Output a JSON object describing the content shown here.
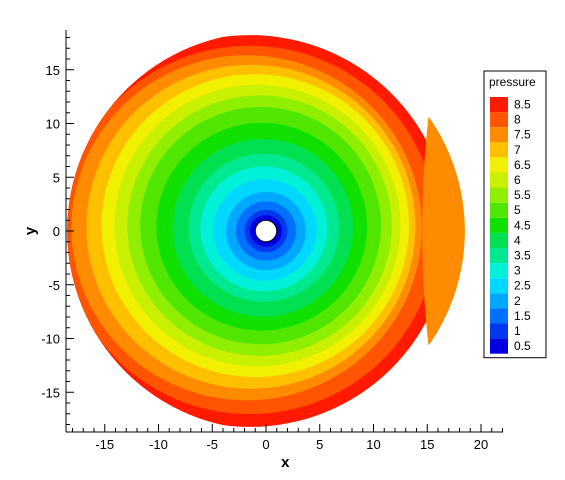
{
  "chart_data": {
    "type": "heatmap",
    "subtype": "filled-contour",
    "xlabel": "x",
    "ylabel": "y",
    "xlim": [
      -18.5,
      22
    ],
    "ylim": [
      -18.5,
      18.5
    ],
    "x_ticks": [
      -15,
      -10,
      -5,
      0,
      5,
      10,
      15,
      20
    ],
    "y_ticks": [
      -15,
      -10,
      -5,
      0,
      5,
      10,
      15
    ],
    "x_tick_labels": [
      "-15",
      "-10",
      "-5",
      "0",
      "5",
      "10",
      "15",
      "20"
    ],
    "y_tick_labels": [
      "-15",
      "-10",
      "-5",
      "0",
      "5",
      "10",
      "15"
    ],
    "domain": {
      "shape": "disk",
      "center": [
        0,
        0
      ],
      "outer_radius": 18.5,
      "inner_radius": 1
    },
    "grid": false,
    "legend": {
      "title": "pressure",
      "placement": "right",
      "levels": [
        "8.5",
        "8",
        "7.5",
        "7",
        "6.5",
        "6",
        "5.5",
        "5",
        "4.5",
        "4",
        "3.5",
        "3",
        "2.5",
        "2",
        "1.5",
        "1",
        "0.5"
      ],
      "colors": [
        "#ff1a00",
        "#ff5500",
        "#ff8c00",
        "#ffc000",
        "#f0f000",
        "#c8f000",
        "#90ee00",
        "#50e600",
        "#10e000",
        "#00e050",
        "#00e890",
        "#00f0d8",
        "#00d8ff",
        "#00a8ff",
        "#0070ff",
        "#0038f0",
        "#0000e0"
      ]
    },
    "contours": [
      {
        "level": "8.5",
        "radius": 18.5,
        "dx": -1.5,
        "dy": 0
      },
      {
        "level": "8",
        "radius": 17.4,
        "dx": -1.5,
        "dy": 0.1
      },
      {
        "level": "7.5",
        "radius": 16.3,
        "dx": -1.8,
        "dy": 0.3
      },
      {
        "level": "7",
        "radius": 15.3,
        "dx": -1.4,
        "dy": 0.4
      },
      {
        "level": "6.5",
        "radius": 14.3,
        "dx": -1.0,
        "dy": 0.5
      },
      {
        "level": "6",
        "radius": 13.3,
        "dx": -0.8,
        "dy": 0.5
      },
      {
        "level": "5.5",
        "radius": 12.3,
        "dx": -0.6,
        "dy": 0.5
      },
      {
        "level": "5",
        "radius": 11.2,
        "dx": -0.5,
        "dy": 0.5
      },
      {
        "level": "4.5",
        "radius": 9.8,
        "dx": -0.4,
        "dy": 0.4
      },
      {
        "level": "4",
        "radius": 8.4,
        "dx": -0.3,
        "dy": 0.3
      },
      {
        "level": "3.5",
        "radius": 7.0,
        "dx": -0.2,
        "dy": 0.3
      },
      {
        "level": "3",
        "radius": 5.9,
        "dx": -0.2,
        "dy": 0.2
      },
      {
        "level": "2.5",
        "radius": 4.8,
        "dx": -0.1,
        "dy": 0.1
      },
      {
        "level": "2",
        "radius": 3.7,
        "dx": 0,
        "dy": 0
      },
      {
        "level": "1.5",
        "radius": 2.8,
        "dx": 0,
        "dy": 0
      },
      {
        "level": "1",
        "radius": 2.0,
        "dx": 0,
        "dy": 0
      },
      {
        "level": "0.5",
        "radius": 1.5,
        "dx": 0,
        "dy": 0
      }
    ],
    "right_band": {
      "level": "7.5",
      "x_from": 15.3,
      "note_color": "#ff8c00"
    }
  }
}
